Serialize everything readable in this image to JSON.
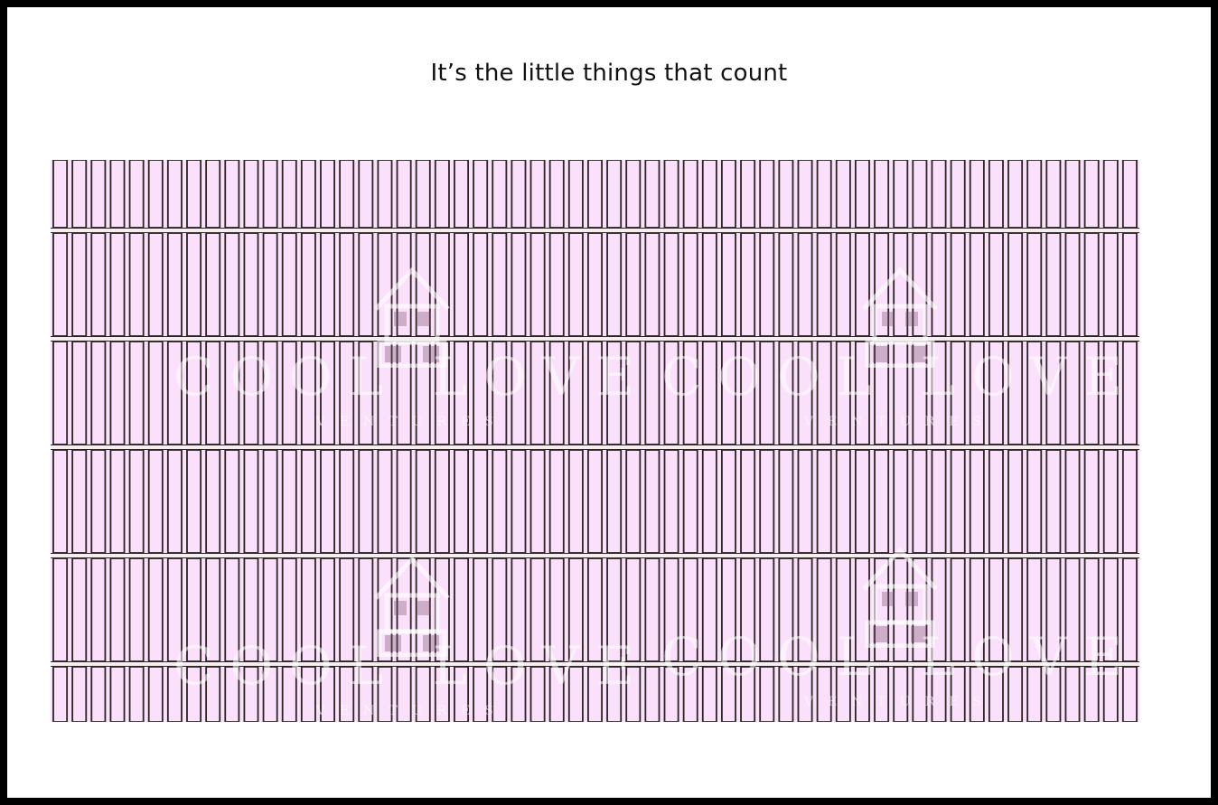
{
  "slide": {
    "title": "It’s the little things that count"
  },
  "tile_image": {
    "tile_color": "#fbe0fb",
    "grout_dark": "#2b2422",
    "grout_light": "#f4eef2",
    "columns": 57,
    "rows": 6
  },
  "watermark": {
    "text": "COOL LOVE",
    "subtext": "VENTURES",
    "icons": [
      "house-logo-icon",
      "house-logo-icon",
      "house-logo-icon",
      "house-logo-icon"
    ]
  }
}
